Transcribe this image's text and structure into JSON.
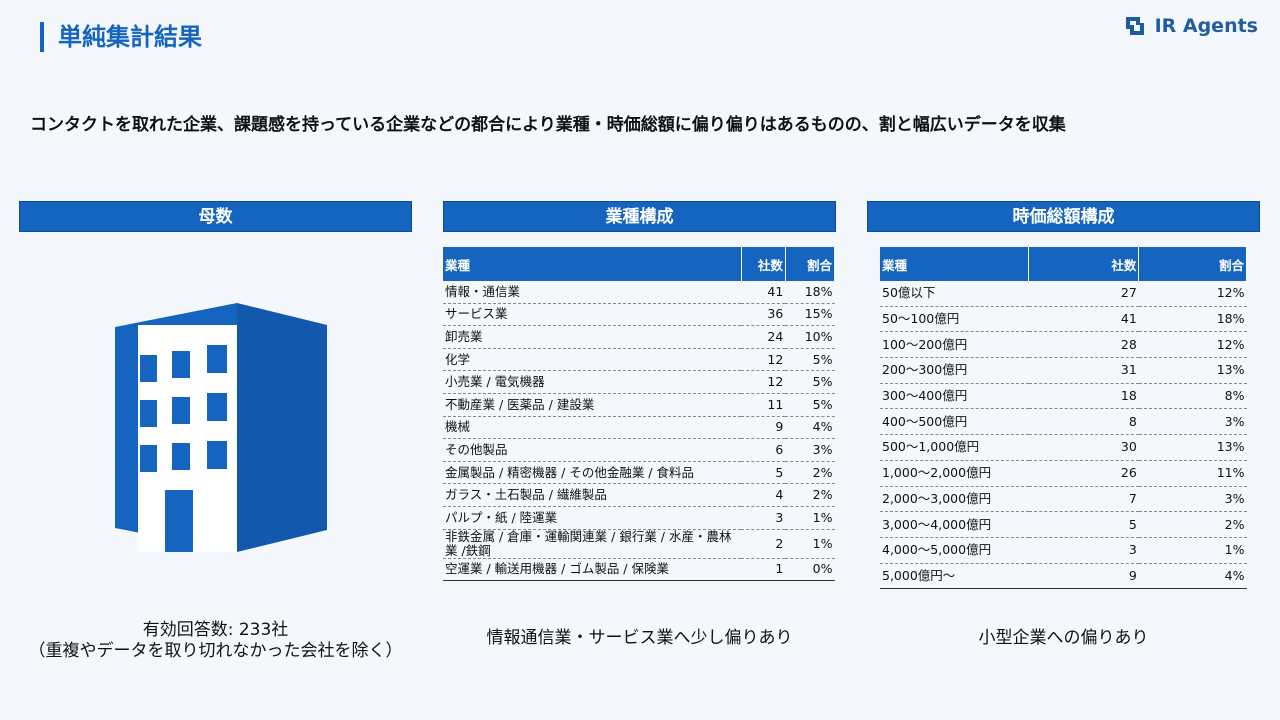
{
  "header": {
    "title": "単純集計結果",
    "logo": "IR Agents"
  },
  "summary": "コンタクトを取れた企業、課題感を持っている企業などの都合により業種・時価総額に偏り偏りはあるものの、割と幅広いデータを収集",
  "panels": [
    {
      "title": "母数",
      "caption": [
        "有効回答数: 233社",
        "（重複やデータを取り切れなかった会社を除く）"
      ]
    },
    {
      "title": "業種構成",
      "caption": [
        "情報通信業・サービス業へ少し偏りあり"
      ],
      "table": {
        "columns": [
          "業種",
          "社数",
          "割合"
        ],
        "rows": [
          [
            "情報・通信業",
            41,
            "18%"
          ],
          [
            "サービス業",
            36,
            "15%"
          ],
          [
            "卸売業",
            24,
            "10%"
          ],
          [
            "化学",
            12,
            "5%"
          ],
          [
            "小売業 / 電気機器",
            12,
            "5%"
          ],
          [
            "不動産業 / 医薬品 / 建設業",
            11,
            "5%"
          ],
          [
            "機械",
            9,
            "4%"
          ],
          [
            "その他製品",
            6,
            "3%"
          ],
          [
            "金属製品 / 精密機器 / その他金融業 / 食料品",
            5,
            "2%"
          ],
          [
            "ガラス・土石製品 / 繊維製品",
            4,
            "2%"
          ],
          [
            "パルプ・紙 / 陸運業",
            3,
            "1%"
          ],
          [
            "非鉄金属 / 倉庫・運輸関連業 / 銀行業 / 水産・農林業 /鉄鋼",
            2,
            "1%"
          ],
          [
            "空運業 / 輸送用機器 / ゴム製品 / 保険業",
            1,
            "0%"
          ]
        ]
      }
    },
    {
      "title": "時価総額構成",
      "caption": [
        "小型企業への偏りあり"
      ],
      "table": {
        "columns": [
          "業種",
          "社数",
          "割合"
        ],
        "rows": [
          [
            "50億以下",
            27,
            "12%"
          ],
          [
            "50〜100億円",
            41,
            "18%"
          ],
          [
            "100〜200億円",
            28,
            "12%"
          ],
          [
            "200〜300億円",
            31,
            "13%"
          ],
          [
            "300〜400億円",
            18,
            "8%"
          ],
          [
            "400〜500億円",
            8,
            "3%"
          ],
          [
            "500〜1,000億円",
            30,
            "13%"
          ],
          [
            "1,000〜2,000億円",
            26,
            "11%"
          ],
          [
            "2,000〜3,000億円",
            7,
            "3%"
          ],
          [
            "3,000〜4,000億円",
            5,
            "2%"
          ],
          [
            "4,000〜5,000億円",
            3,
            "1%"
          ],
          [
            "5,000億円〜",
            9,
            "4%"
          ]
        ]
      }
    }
  ]
}
